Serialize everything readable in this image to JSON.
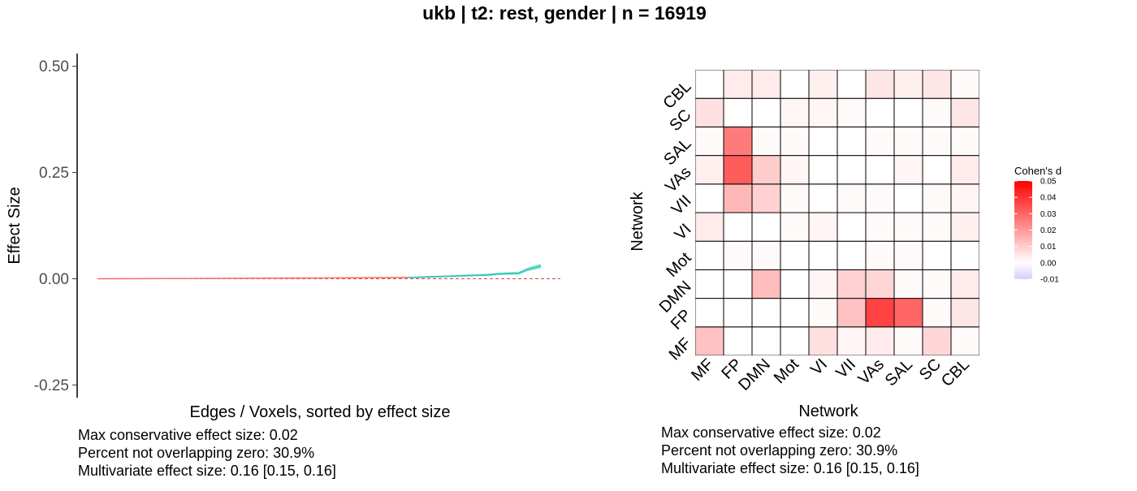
{
  "title": "ukb | t2: rest, gender | n = 16919",
  "colors": {
    "line_low": "#f8766d",
    "line_high": "#2ac4b4",
    "ribbon": "#7fdcd2",
    "zero_line": "#e34a4a",
    "heat_max": "#ff0000",
    "heat_mid": "#ffffff",
    "heat_min": "#d9ccff"
  },
  "left_stats": [
    "Max conservative effect size: 0.02",
    "Percent not overlapping zero: 30.9%",
    "Multivariate effect size: 0.16 [0.15, 0.16]"
  ],
  "right_stats": [
    "Max conservative effect size: 0.02",
    "Percent not overlapping zero: 30.9%",
    "Multivariate effect size: 0.16 [0.15, 0.16]"
  ],
  "chart_data": [
    {
      "type": "line",
      "xlabel": "Edges / Voxels, sorted by effect size",
      "ylabel": "Effect Size",
      "ylim": [
        -0.28,
        0.53
      ],
      "yticks": [
        -0.25,
        0.0,
        0.25,
        0.5
      ],
      "ytick_labels": [
        "-0.25",
        "0.00",
        "0.25",
        "0.50"
      ],
      "grid": false,
      "reference_line": 0.0,
      "x": [
        0,
        0.1,
        0.2,
        0.3,
        0.4,
        0.5,
        0.6,
        0.65,
        0.7,
        0.72,
        0.75,
        0.8,
        0.82,
        0.85,
        0.88,
        0.9,
        0.92,
        0.95,
        0.97,
        1.0
      ],
      "y": [
        0.0,
        0.0003,
        0.0006,
        0.001,
        0.0014,
        0.0018,
        0.0023,
        0.0026,
        0.003,
        0.0034,
        0.0045,
        0.006,
        0.007,
        0.008,
        0.009,
        0.011,
        0.012,
        0.013,
        0.022,
        0.03
      ],
      "ci_half_width": [
        0.0005,
        0.0005,
        0.0005,
        0.0006,
        0.0006,
        0.0008,
        0.001,
        0.0012,
        0.0015,
        0.0018,
        0.002,
        0.0022,
        0.0024,
        0.0025,
        0.0028,
        0.003,
        0.0032,
        0.0035,
        0.0045,
        0.006
      ]
    },
    {
      "type": "heatmap",
      "xlabel": "Network",
      "ylabel": "Network",
      "categories": [
        "MF",
        "FP",
        "DMN",
        "Mot",
        "VI",
        "VII",
        "VAs",
        "SAL",
        "SC",
        "CBL"
      ],
      "legend_title": "Cohen's d",
      "legend_position": "right",
      "legend_ticks": [
        0.05,
        0.04,
        0.03,
        0.02,
        0.01,
        0.0,
        -0.01
      ],
      "legend_tick_labels": [
        "0.05",
        "0.04",
        "0.03",
        "0.02",
        "0.01",
        "0.00",
        "-0.01"
      ],
      "value_range": [
        -0.01,
        0.05
      ],
      "values": [
        [
          0.012,
          0.0,
          0.0,
          0.0,
          0.006,
          0.002,
          0.004,
          0.001,
          0.008,
          0.001
        ],
        [
          0.0,
          0.0,
          0.0,
          0.0,
          0.001,
          0.012,
          0.037,
          0.03,
          0.001,
          0.005
        ],
        [
          0.0,
          0.0,
          0.013,
          0.0,
          0.002,
          0.009,
          0.008,
          0.001,
          0.001,
          0.004
        ],
        [
          0.0,
          0.001,
          0.001,
          0.0,
          0.0,
          0.0,
          0.001,
          0.001,
          0.0,
          0.0
        ],
        [
          0.004,
          0.0,
          0.0,
          0.001,
          0.002,
          0.0,
          0.001,
          0.001,
          0.001,
          0.003
        ],
        [
          0.0,
          0.014,
          0.009,
          0.001,
          0.0,
          0.001,
          0.001,
          0.0,
          0.001,
          0.002
        ],
        [
          0.003,
          0.032,
          0.01,
          0.002,
          0.0,
          0.0,
          0.0,
          0.002,
          0.0,
          0.004
        ],
        [
          0.001,
          0.026,
          0.001,
          0.001,
          0.0,
          0.0,
          0.001,
          0.001,
          0.001,
          0.001
        ],
        [
          0.006,
          0.0,
          0.0,
          0.002,
          0.002,
          0.001,
          0.0,
          0.0,
          0.001,
          0.005
        ],
        [
          0.0,
          0.004,
          0.004,
          0.0,
          0.003,
          0.0,
          0.005,
          0.003,
          0.005,
          0.001
        ]
      ]
    }
  ]
}
